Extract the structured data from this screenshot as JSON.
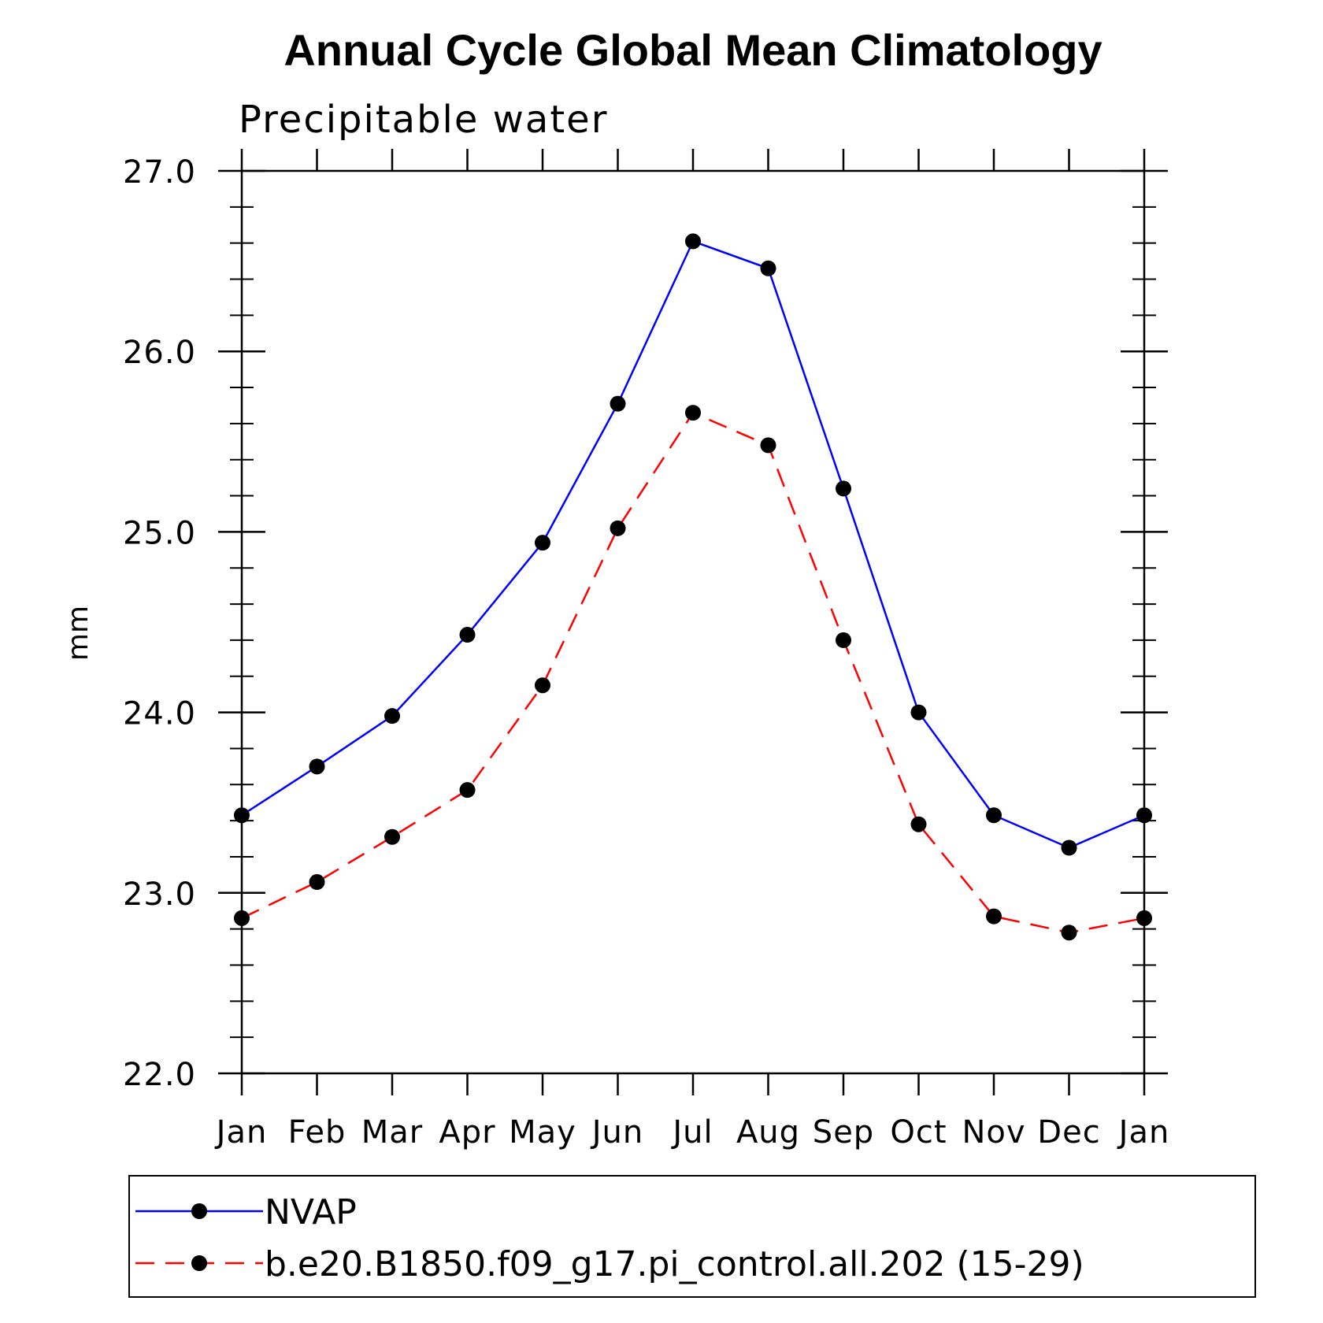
{
  "chart_data": {
    "type": "line",
    "title": "Annual Cycle Global Mean Climatology",
    "subtitle": "Precipitable water",
    "xlabel": "",
    "ylabel": "mm",
    "categories": [
      "Jan",
      "Feb",
      "Mar",
      "Apr",
      "May",
      "Jun",
      "Jul",
      "Aug",
      "Sep",
      "Oct",
      "Nov",
      "Dec",
      "Jan"
    ],
    "ylim": [
      22.0,
      27.0
    ],
    "yticks": [
      "22.0",
      "23.0",
      "24.0",
      "25.0",
      "26.0",
      "27.0"
    ],
    "grid": false,
    "legend_position": "bottom",
    "series": [
      {
        "name": "NVAP",
        "color": "#0000ff",
        "style": "solid",
        "marker": "circle",
        "values": [
          23.43,
          23.7,
          23.98,
          24.43,
          24.94,
          25.71,
          26.61,
          26.46,
          25.24,
          24.0,
          23.43,
          23.25,
          23.43
        ]
      },
      {
        "name": "b.e20.B1850.f09_g17.pi_control.all.202 (15-29)",
        "color": "#ff0000",
        "style": "dashed",
        "marker": "circle",
        "values": [
          22.86,
          23.06,
          23.31,
          23.57,
          24.15,
          25.02,
          25.66,
          25.48,
          24.4,
          23.38,
          22.87,
          22.78,
          22.86
        ]
      }
    ]
  }
}
